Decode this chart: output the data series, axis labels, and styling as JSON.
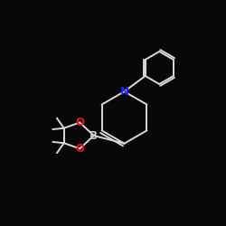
{
  "bg_color": "#080808",
  "bond_color": "#d8d8d8",
  "N_color": "#2222ee",
  "O_color": "#ee1111",
  "B_color": "#c8c8c8",
  "label_N": "N",
  "label_B": "B",
  "label_O1": "O",
  "label_O2": "O",
  "figsize": [
    2.5,
    2.5
  ],
  "dpi": 100,
  "lw": 1.4,
  "font_size": 8.5
}
